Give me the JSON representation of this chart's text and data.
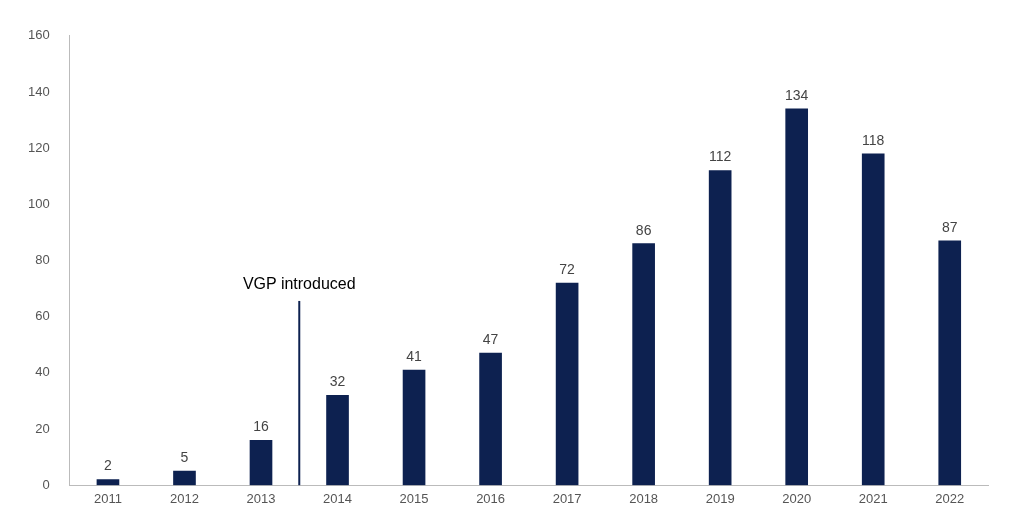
{
  "chart_data": {
    "type": "bar",
    "x": [
      2011,
      2012,
      2013,
      2014,
      2015,
      2016,
      2017,
      2018,
      2019,
      2020,
      2021,
      2022
    ],
    "values": [
      2,
      5,
      16,
      32,
      41,
      47,
      72,
      86,
      112,
      134,
      118,
      87
    ],
    "color": "#0d2150",
    "xlim": [
      2010.5,
      2022.5
    ],
    "xticks": [
      2011,
      2012,
      2013,
      2014,
      2015,
      2016,
      2017,
      2018,
      2019,
      2020,
      2021,
      2022
    ],
    "ylim": [
      0,
      160
    ],
    "yticks": [
      0,
      20,
      40,
      60,
      80,
      100,
      120,
      140,
      160
    ],
    "data_labels": true,
    "grid": false,
    "legend": false,
    "ref_lines": [
      {
        "axis": "x",
        "value": 2013.5,
        "label": "VGP introduced",
        "color": "#0d2150"
      }
    ]
  }
}
